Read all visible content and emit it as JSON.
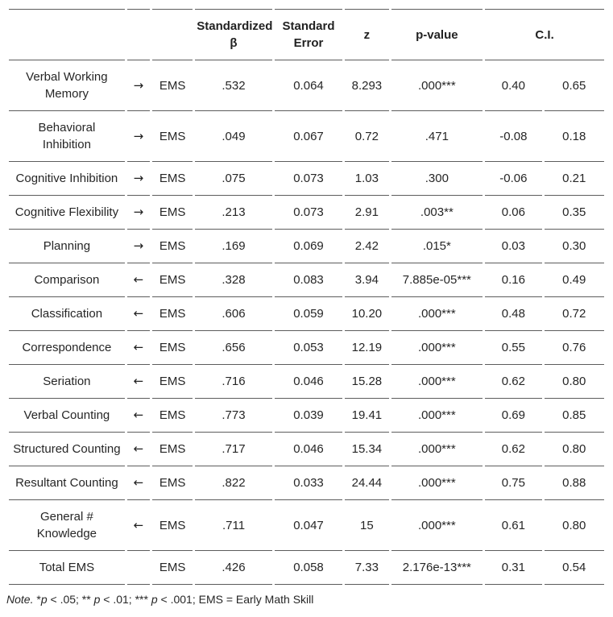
{
  "header": {
    "beta_lines": [
      "Standardized",
      "β"
    ],
    "se_lines": [
      "Standard",
      "Error"
    ],
    "z": "z",
    "p": "p-value",
    "ci": "C.I."
  },
  "rows": [
    {
      "label_lines": [
        "Verbal Working",
        "Memory"
      ],
      "arrow": "→",
      "latent": "EMS",
      "beta": ".532",
      "se": "0.064",
      "z": "8.293",
      "p": ".000***",
      "ci_low": "0.40",
      "ci_high": "0.65"
    },
    {
      "label_lines": [
        "Behavioral",
        "Inhibition"
      ],
      "arrow": "→",
      "latent": "EMS",
      "beta": ".049",
      "se": "0.067",
      "z": "0.72",
      "p": ".471",
      "ci_low": "-0.08",
      "ci_high": "0.18"
    },
    {
      "label_lines": [
        "Cognitive Inhibition"
      ],
      "arrow": "→",
      "latent": "EMS",
      "beta": ".075",
      "se": "0.073",
      "z": "1.03",
      "p": ".300",
      "ci_low": "-0.06",
      "ci_high": "0.21"
    },
    {
      "label_lines": [
        "Cognitive Flexibility"
      ],
      "arrow": "→",
      "latent": "EMS",
      "beta": ".213",
      "se": "0.073",
      "z": "2.91",
      "p": ".003**",
      "ci_low": "0.06",
      "ci_high": "0.35"
    },
    {
      "label_lines": [
        "Planning"
      ],
      "arrow": "→",
      "latent": "EMS",
      "beta": ".169",
      "se": "0.069",
      "z": "2.42",
      "p": ".015*",
      "ci_low": "0.03",
      "ci_high": "0.30"
    },
    {
      "label_lines": [
        "Comparison"
      ],
      "arrow": "←",
      "latent": "EMS",
      "beta": ".328",
      "se": "0.083",
      "z": "3.94",
      "p": "7.885e-05***",
      "ci_low": "0.16",
      "ci_high": "0.49"
    },
    {
      "label_lines": [
        "Classification"
      ],
      "arrow": "←",
      "latent": "EMS",
      "beta": ".606",
      "se": "0.059",
      "z": "10.20",
      "p": ".000***",
      "ci_low": "0.48",
      "ci_high": "0.72"
    },
    {
      "label_lines": [
        "Correspondence"
      ],
      "arrow": "←",
      "latent": "EMS",
      "beta": ".656",
      "se": "0.053",
      "z": "12.19",
      "p": ".000***",
      "ci_low": "0.55",
      "ci_high": "0.76"
    },
    {
      "label_lines": [
        "Seriation"
      ],
      "arrow": "←",
      "latent": "EMS",
      "beta": ".716",
      "se": "0.046",
      "z": "15.28",
      "p": ".000***",
      "ci_low": "0.62",
      "ci_high": "0.80"
    },
    {
      "label_lines": [
        "Verbal Counting"
      ],
      "arrow": "←",
      "latent": "EMS",
      "beta": ".773",
      "se": "0.039",
      "z": "19.41",
      "p": ".000***",
      "ci_low": "0.69",
      "ci_high": "0.85"
    },
    {
      "label_lines": [
        "Structured Counting"
      ],
      "arrow": "←",
      "latent": "EMS",
      "beta": ".717",
      "se": "0.046",
      "z": "15.34",
      "p": ".000***",
      "ci_low": "0.62",
      "ci_high": "0.80"
    },
    {
      "label_lines": [
        "Resultant Counting"
      ],
      "arrow": "←",
      "latent": "EMS",
      "beta": ".822",
      "se": "0.033",
      "z": "24.44",
      "p": ".000***",
      "ci_low": "0.75",
      "ci_high": "0.88"
    },
    {
      "label_lines": [
        "General #",
        "Knowledge"
      ],
      "arrow": "←",
      "latent": "EMS",
      "beta": ".711",
      "se": "0.047",
      "z": "15",
      "p": ".000***",
      "ci_low": "0.61",
      "ci_high": "0.80"
    },
    {
      "label_lines": [
        "Total EMS"
      ],
      "arrow": "",
      "latent": "EMS",
      "beta": ".426",
      "se": "0.058",
      "z": "7.33",
      "p": "2.176e-13***",
      "ci_low": "0.31",
      "ci_high": "0.54"
    }
  ],
  "note": {
    "parts": [
      {
        "text": "Note.",
        "italic": true
      },
      {
        "text": " *",
        "italic": false
      },
      {
        "text": "p",
        "italic": true
      },
      {
        "text": " < .05; ** ",
        "italic": false
      },
      {
        "text": "p",
        "italic": true
      },
      {
        "text": " < .01; *** ",
        "italic": false
      },
      {
        "text": "p",
        "italic": true
      },
      {
        "text": " < .001; EMS = Early Math Skill",
        "italic": false
      }
    ]
  },
  "colors": {
    "border": "#5c5c5c",
    "text": "#262626"
  }
}
